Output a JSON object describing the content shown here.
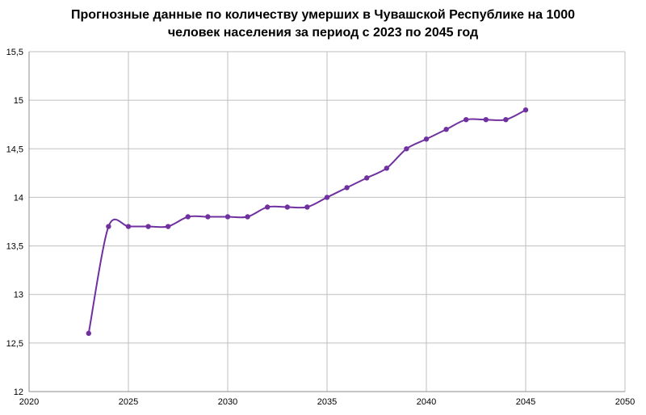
{
  "chart_data": {
    "type": "scatter",
    "title_line1": "Прогнозные данные по количеству умерших в Чувашской Республике на 1000",
    "title_line2": "человек населения за период с 2023 по 2045 год",
    "xlim": [
      2020,
      2050
    ],
    "ylim": [
      12,
      15.5
    ],
    "x_ticks": [
      2020,
      2025,
      2030,
      2035,
      2040,
      2045,
      2050
    ],
    "x_tick_labels": [
      "2020",
      "2025",
      "2030",
      "2035",
      "2040",
      "2045",
      "2050"
    ],
    "y_ticks": [
      12,
      12.5,
      13,
      13.5,
      14,
      14.5,
      15,
      15.5
    ],
    "y_tick_labels": [
      "12",
      "12,5",
      "13",
      "13,5",
      "14",
      "14,5",
      "15",
      "15,5"
    ],
    "grid": true,
    "series": [
      {
        "color": "#7030a0",
        "x": [
          2023,
          2024,
          2025,
          2026,
          2027,
          2028,
          2029,
          2030,
          2031,
          2032,
          2033,
          2034,
          2035,
          2036,
          2037,
          2038,
          2039,
          2040,
          2041,
          2042,
          2043,
          2044,
          2045
        ],
        "y": [
          12.6,
          13.7,
          13.7,
          13.7,
          13.7,
          13.8,
          13.8,
          13.8,
          13.8,
          13.9,
          13.9,
          13.9,
          14.0,
          14.1,
          14.2,
          14.3,
          14.5,
          14.6,
          14.7,
          14.8,
          14.8,
          14.8,
          14.9
        ]
      }
    ]
  }
}
